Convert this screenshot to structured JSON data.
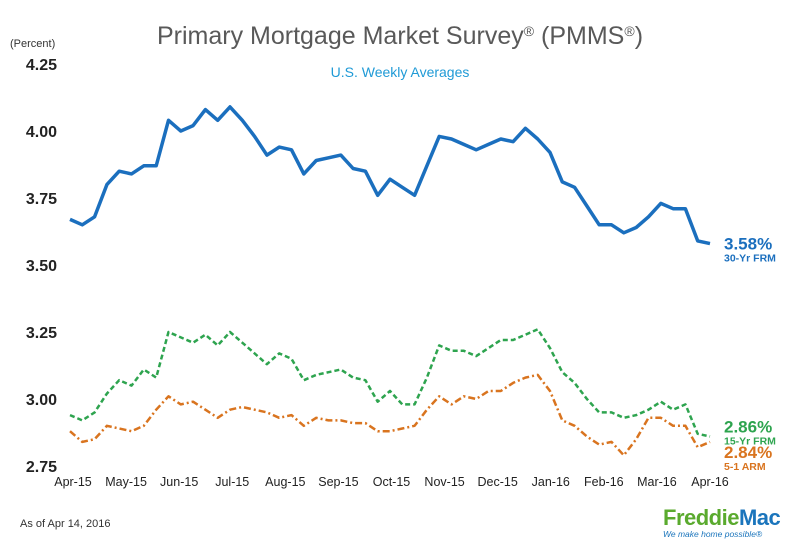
{
  "chart_data": {
    "type": "line",
    "title": "Primary Mortgage Market Survey",
    "title_suffix": " (PMMS",
    "title_close": ")",
    "registered_mark": "®",
    "subtitle": "U.S. Weekly Averages",
    "ylabel": "(Percent)",
    "ylim": [
      2.75,
      4.25
    ],
    "yticks": [
      "4.25",
      "4.00",
      "3.75",
      "3.50",
      "3.25",
      "3.00",
      "2.75"
    ],
    "x_ticks": [
      "Apr-15",
      "May-15",
      "Jun-15",
      "Jul-15",
      "Aug-15",
      "Sep-15",
      "Oct-15",
      "Nov-15",
      "Dec-15",
      "Jan-16",
      "Feb-16",
      "Mar-16",
      "Apr-16"
    ],
    "series": [
      {
        "name": "30-Yr FRM",
        "end_label": "3.58%",
        "color": "#1b6fbe",
        "dash": "",
        "values": [
          3.67,
          3.65,
          3.68,
          3.8,
          3.85,
          3.84,
          3.87,
          3.87,
          4.04,
          4.0,
          4.02,
          4.08,
          4.04,
          4.09,
          4.04,
          3.98,
          3.91,
          3.94,
          3.93,
          3.84,
          3.89,
          3.9,
          3.91,
          3.86,
          3.85,
          3.76,
          3.82,
          3.79,
          3.76,
          3.87,
          3.98,
          3.97,
          3.95,
          3.93,
          3.95,
          3.97,
          3.96,
          4.01,
          3.97,
          3.92,
          3.81,
          3.79,
          3.72,
          3.65,
          3.65,
          3.62,
          3.64,
          3.68,
          3.73,
          3.71,
          3.71,
          3.59,
          3.58
        ]
      },
      {
        "name": "15-Yr FRM",
        "end_label": "2.86%",
        "color": "#2ea44f",
        "dash": "5,3",
        "values": [
          2.94,
          2.92,
          2.95,
          3.02,
          3.07,
          3.05,
          3.11,
          3.08,
          3.25,
          3.23,
          3.21,
          3.24,
          3.2,
          3.25,
          3.21,
          3.17,
          3.13,
          3.17,
          3.15,
          3.07,
          3.09,
          3.1,
          3.11,
          3.08,
          3.07,
          2.99,
          3.03,
          2.98,
          2.98,
          3.08,
          3.2,
          3.18,
          3.18,
          3.16,
          3.19,
          3.22,
          3.22,
          3.24,
          3.26,
          3.19,
          3.1,
          3.06,
          3.0,
          2.95,
          2.95,
          2.93,
          2.94,
          2.96,
          2.99,
          2.96,
          2.98,
          2.87,
          2.86
        ]
      },
      {
        "name": "5-1 ARM",
        "end_label": "2.84%",
        "color": "#d9741f",
        "dash": "7,3,2,3",
        "values": [
          2.88,
          2.84,
          2.85,
          2.9,
          2.89,
          2.88,
          2.9,
          2.96,
          3.01,
          2.98,
          2.99,
          2.96,
          2.93,
          2.96,
          2.97,
          2.96,
          2.95,
          2.93,
          2.94,
          2.9,
          2.93,
          2.92,
          2.92,
          2.91,
          2.91,
          2.88,
          2.88,
          2.89,
          2.9,
          2.96,
          3.01,
          2.98,
          3.01,
          3.0,
          3.03,
          3.03,
          3.06,
          3.08,
          3.09,
          3.03,
          2.92,
          2.9,
          2.86,
          2.83,
          2.84,
          2.79,
          2.85,
          2.93,
          2.93,
          2.9,
          2.9,
          2.82,
          2.84
        ]
      }
    ]
  },
  "footer": {
    "as_of": "As of Apr 14, 2016",
    "logo_part1": "Freddie",
    "logo_part2": "Mac",
    "tagline": "We make home possible",
    "tagline_mark": "®"
  }
}
